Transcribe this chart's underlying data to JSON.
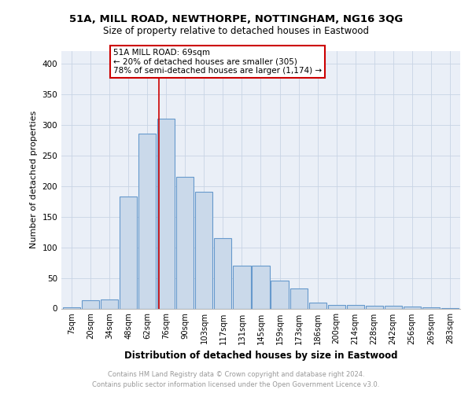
{
  "title1": "51A, MILL ROAD, NEWTHORPE, NOTTINGHAM, NG16 3QG",
  "title2": "Size of property relative to detached houses in Eastwood",
  "xlabel": "Distribution of detached houses by size in Eastwood",
  "ylabel": "Number of detached properties",
  "categories": [
    "7sqm",
    "20sqm",
    "34sqm",
    "48sqm",
    "62sqm",
    "76sqm",
    "90sqm",
    "103sqm",
    "117sqm",
    "131sqm",
    "145sqm",
    "159sqm",
    "173sqm",
    "186sqm",
    "200sqm",
    "214sqm",
    "228sqm",
    "242sqm",
    "256sqm",
    "269sqm",
    "283sqm"
  ],
  "values": [
    2,
    14,
    15,
    183,
    285,
    310,
    215,
    190,
    115,
    70,
    70,
    45,
    33,
    10,
    6,
    6,
    4,
    5,
    3,
    2,
    1
  ],
  "bar_color": "#cad9ea",
  "bar_edge_color": "#6699cc",
  "bar_linewidth": 0.8,
  "vline_x": 4.62,
  "vline_color": "#cc0000",
  "vline_linewidth": 1.2,
  "annotation_line1": "51A MILL ROAD: 69sqm",
  "annotation_line2": "← 20% of detached houses are smaller (305)",
  "annotation_line3": "78% of semi-detached houses are larger (1,174) →",
  "annotation_box_color": "white",
  "annotation_box_edge": "#cc0000",
  "grid_color": "#c8d4e4",
  "bg_color": "#eaeff7",
  "ylim": [
    0,
    420
  ],
  "yticks": [
    0,
    50,
    100,
    150,
    200,
    250,
    300,
    350,
    400
  ],
  "footer1": "Contains HM Land Registry data © Crown copyright and database right 2024.",
  "footer2": "Contains public sector information licensed under the Open Government Licence v3.0."
}
